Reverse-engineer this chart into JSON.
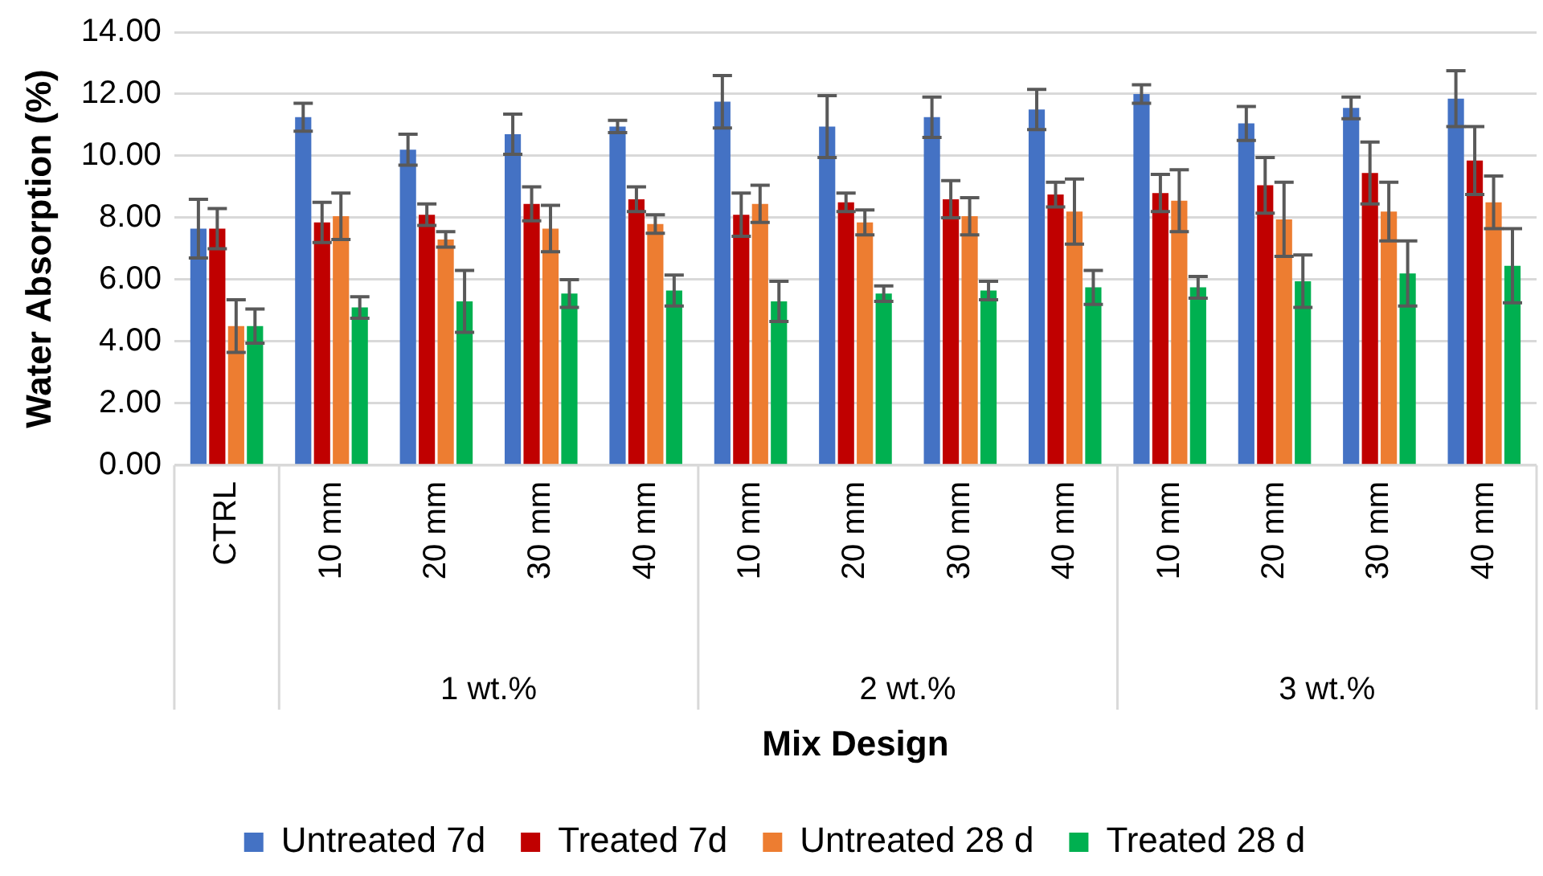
{
  "chart_data": {
    "type": "bar",
    "xlabel": "Mix Design",
    "ylabel": "Water Absorption (%)",
    "categories": [
      "CTRL",
      "10 mm",
      "20 mm",
      "30 mm",
      "40 mm",
      "10 mm",
      "20 mm",
      "30 mm",
      "40 mm",
      "10 mm",
      "20 mm",
      "30 mm",
      "40 mm"
    ],
    "annotations": [
      "1 wt.%",
      "2 wt.%",
      "3 wt.%"
    ],
    "series": [
      {
        "name": "Untreated 7d",
        "color": "#4472c4",
        "values": [
          7.65,
          11.25,
          10.2,
          10.7,
          10.95,
          11.75,
          10.95,
          11.25,
          11.5,
          12.0,
          11.05,
          11.55,
          11.85
        ],
        "errors": [
          0.95,
          0.45,
          0.5,
          0.65,
          0.2,
          0.85,
          1.0,
          0.65,
          0.65,
          0.3,
          0.55,
          0.35,
          0.9
        ]
      },
      {
        "name": "Treated 7d",
        "color": "#c00000",
        "values": [
          7.65,
          7.85,
          8.1,
          8.45,
          8.6,
          8.1,
          8.5,
          8.6,
          8.75,
          8.8,
          9.05,
          9.45,
          9.85
        ],
        "errors": [
          0.65,
          0.65,
          0.35,
          0.55,
          0.4,
          0.7,
          0.3,
          0.6,
          0.4,
          0.6,
          0.9,
          1.0,
          1.1
        ]
      },
      {
        "name": "Untreated 28 d",
        "color": "#ed7d31",
        "values": [
          4.5,
          8.05,
          7.3,
          7.65,
          7.8,
          8.45,
          7.85,
          8.05,
          8.2,
          8.55,
          7.95,
          8.2,
          8.5
        ],
        "errors": [
          0.85,
          0.75,
          0.25,
          0.75,
          0.3,
          0.6,
          0.4,
          0.6,
          1.05,
          1.0,
          1.2,
          0.95,
          0.85
        ]
      },
      {
        "name": "Treated 28 d",
        "color": "#00b050",
        "values": [
          4.5,
          5.1,
          5.3,
          5.55,
          5.65,
          5.3,
          5.55,
          5.65,
          5.75,
          5.75,
          5.95,
          6.2,
          6.45
        ],
        "errors": [
          0.55,
          0.35,
          1.0,
          0.45,
          0.5,
          0.65,
          0.25,
          0.3,
          0.55,
          0.35,
          0.85,
          1.05,
          1.2
        ]
      }
    ],
    "ylim": [
      0,
      14
    ],
    "yticks": [
      {
        "value": 0,
        "label": "0.00"
      },
      {
        "value": 2,
        "label": "2.00"
      },
      {
        "value": 4,
        "label": "4.00"
      },
      {
        "value": 6,
        "label": "6.00"
      },
      {
        "value": 8,
        "label": "8.00"
      },
      {
        "value": 10,
        "label": "10.00"
      },
      {
        "value": 12,
        "label": "12.00"
      },
      {
        "value": 14,
        "label": "14.00"
      }
    ],
    "grid": "y",
    "legend": "bottom"
  }
}
